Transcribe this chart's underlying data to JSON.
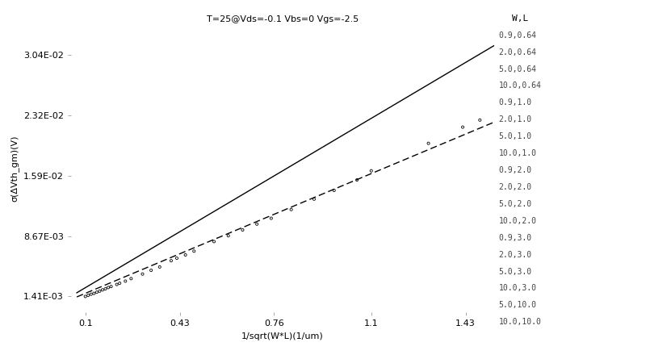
{
  "title": "T=25@Vds=-0.1 Vbs=0 Vgs=-2.5",
  "xlabel": "1/sqrt(W*L)(1/um)",
  "ylabel": "σ(ΔVth_gm)(V)",
  "xlim": [
    0.05,
    1.53
  ],
  "ylim": [
    -0.0005,
    0.034
  ],
  "xticks": [
    0.1,
    0.43,
    0.76,
    1.1,
    1.43
  ],
  "yticks": [
    0.00141,
    0.00867,
    0.0159,
    0.0232,
    0.0304
  ],
  "ytick_labels": [
    "1.41E-03",
    "8.67E-03",
    "1.59E-02",
    "2.32E-02",
    "3.04E-02"
  ],
  "solid_line_x": [
    0.07,
    1.53
  ],
  "solid_line_y": [
    0.00185,
    0.03155
  ],
  "dashed_line_x": [
    0.07,
    1.53
  ],
  "dashed_line_y": [
    0.00135,
    0.02235
  ],
  "legend_title": "W,L",
  "legend_entries": [
    "0.9,0.64",
    "2.0,0.64",
    "5.0,0.64",
    "10.0,0.64",
    "0.9,1.0",
    "2.0,1.0",
    "5.0,1.0",
    "10.0,1.0",
    "0.9,2.0",
    "2.0,2.0",
    "5.0,2.0",
    "10.0,2.0",
    "0.9,3.0",
    "2.0,3.0",
    "5.0,3.0",
    "10.0,3.0",
    "5.0,10.0",
    "10.0,10.0"
  ],
  "scatter_x": [
    0.1,
    0.11,
    0.12,
    0.13,
    0.14,
    0.15,
    0.16,
    0.17,
    0.18,
    0.19,
    0.21,
    0.22,
    0.24,
    0.26,
    0.3,
    0.33,
    0.36,
    0.4,
    0.42,
    0.45,
    0.48,
    0.55,
    0.6,
    0.65,
    0.7,
    0.75,
    0.82,
    0.9,
    0.97,
    1.05,
    1.1,
    1.3,
    1.42,
    1.48
  ],
  "scatter_y": [
    0.00141,
    0.00155,
    0.00168,
    0.00178,
    0.00192,
    0.00205,
    0.0022,
    0.00232,
    0.00248,
    0.0026,
    0.00285,
    0.003,
    0.00325,
    0.00355,
    0.0041,
    0.00455,
    0.00495,
    0.0057,
    0.006,
    0.0064,
    0.00685,
    0.008,
    0.0087,
    0.0094,
    0.0101,
    0.0108,
    0.01185,
    0.0131,
    0.01415,
    0.0154,
    0.0165,
    0.0198,
    0.02175,
    0.0226
  ],
  "line_color": "#000000",
  "scatter_color": "#000000",
  "background_color": "#ffffff",
  "font_size": 8,
  "title_font_size": 8,
  "legend_font_size": 7
}
